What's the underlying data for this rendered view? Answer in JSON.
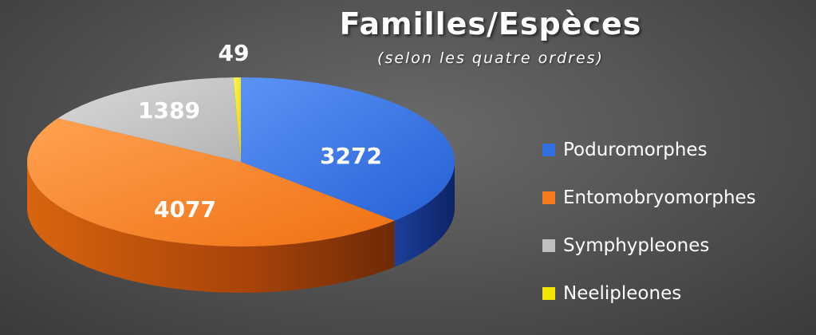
{
  "chart_data": {
    "type": "pie",
    "title": "Familles/Espèces",
    "subtitle": "(selon les quatre ordres)",
    "categories": [
      "Poduromorphes",
      "Entomobryomorphes",
      "Symphypleones",
      "Neelipleones"
    ],
    "values": [
      3272,
      4077,
      1389,
      49
    ],
    "colors": [
      "#2f6fe0",
      "#f47a1f",
      "#bfbfbf",
      "#f2e500"
    ],
    "legend_placement": "right",
    "style": "3d",
    "start_direction": "top, clockwise"
  }
}
